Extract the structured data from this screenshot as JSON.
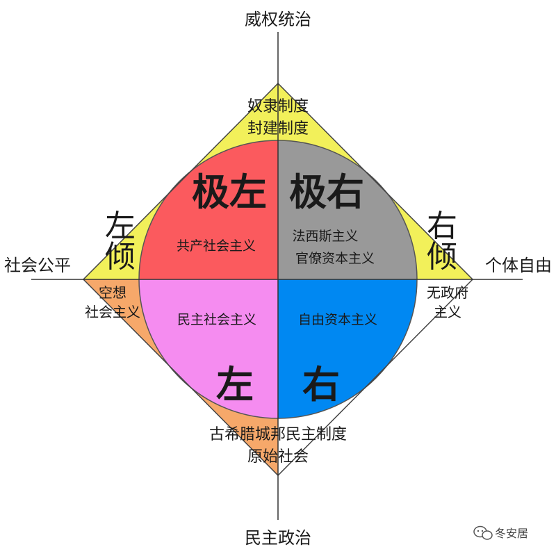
{
  "colors": {
    "top_triangle": "#f2f05a",
    "left_triangle": "#c4f5f2",
    "bottom_triangle": "#f6a86a",
    "quad_top_left": "#fb5a5e",
    "quad_top_right": "#999999",
    "quad_bottom_left": "#f58cf0",
    "quad_bottom_right": "#0088f2"
  },
  "axes": {
    "top": "威权统治",
    "bottom": "民主政治",
    "left": "社会公平",
    "right": "个体自由"
  },
  "regions": {
    "top": [
      "奴隶制度",
      "封建制度"
    ],
    "bottom": [
      "古希腊城邦民主制度",
      "原始社会"
    ],
    "left": [
      "空想",
      "社会主义"
    ],
    "right": [
      "无政府",
      "主义"
    ]
  },
  "quadrants": {
    "top_left": {
      "title": "极左",
      "items": [
        "共产社会主义"
      ]
    },
    "top_right": {
      "title": "极右",
      "items": [
        "法西斯主义",
        "官僚资本主义"
      ]
    },
    "bottom_left": {
      "title": "左",
      "items": [
        "民主社会主义"
      ]
    },
    "bottom_right": {
      "title": "右",
      "items": [
        "自由资本主义"
      ]
    }
  },
  "lean": {
    "left": [
      "左",
      "倾"
    ],
    "right": [
      "右",
      "倾"
    ]
  },
  "watermark": {
    "icon": "wechat-icon",
    "text": "冬安居"
  }
}
